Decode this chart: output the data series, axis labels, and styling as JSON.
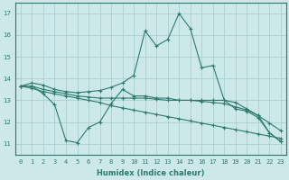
{
  "xlabel": "Humidex (Indice chaleur)",
  "xlim": [
    -0.5,
    23.5
  ],
  "ylim": [
    10.5,
    17.5
  ],
  "yticks": [
    11,
    12,
    13,
    14,
    15,
    16,
    17
  ],
  "xticks": [
    0,
    1,
    2,
    3,
    4,
    5,
    6,
    7,
    8,
    9,
    10,
    11,
    12,
    13,
    14,
    15,
    16,
    17,
    18,
    19,
    20,
    21,
    22,
    23
  ],
  "bg_color": "#cce8e8",
  "grid_color": "#aad0d0",
  "line_color": "#2d7a70",
  "line1_x": [
    0,
    1,
    2,
    3,
    4,
    5,
    6,
    7,
    8,
    9,
    10,
    11,
    12,
    13,
    14,
    15,
    16,
    17,
    18,
    19,
    20,
    21,
    22,
    23
  ],
  "line1_y": [
    13.65,
    13.8,
    13.7,
    13.5,
    13.4,
    13.35,
    13.4,
    13.45,
    13.6,
    13.8,
    14.15,
    16.2,
    15.5,
    15.8,
    17.0,
    16.3,
    14.5,
    14.6,
    13.0,
    12.6,
    12.5,
    12.2,
    11.5,
    11.1
  ],
  "line2_x": [
    0,
    1,
    2,
    3,
    4,
    5,
    6,
    7,
    8,
    9,
    10,
    11,
    12,
    13,
    14,
    15,
    16,
    17,
    18,
    19,
    20,
    21,
    22,
    23
  ],
  "line2_y": [
    13.65,
    13.65,
    13.5,
    13.4,
    13.3,
    13.2,
    13.15,
    13.1,
    13.1,
    13.1,
    13.1,
    13.1,
    13.05,
    13.0,
    13.0,
    13.0,
    12.95,
    12.9,
    12.85,
    12.7,
    12.55,
    12.3,
    11.95,
    11.6
  ],
  "line3_x": [
    0,
    1,
    2,
    3,
    4,
    5,
    6,
    7,
    8,
    9,
    10,
    11,
    12,
    13,
    14,
    15,
    16,
    17,
    18,
    19,
    20,
    21,
    22,
    23
  ],
  "line3_y": [
    13.65,
    13.55,
    13.4,
    13.3,
    13.2,
    13.1,
    13.0,
    12.9,
    12.75,
    12.65,
    12.55,
    12.45,
    12.35,
    12.25,
    12.15,
    12.05,
    11.95,
    11.85,
    11.75,
    11.65,
    11.55,
    11.45,
    11.35,
    11.25
  ],
  "line4_x": [
    0,
    1,
    2,
    3,
    4,
    5,
    6,
    7,
    8,
    9,
    10,
    11,
    12,
    13,
    14,
    15,
    16,
    17,
    18,
    19,
    20,
    21,
    22,
    23
  ],
  "line4_y": [
    13.65,
    13.65,
    13.3,
    12.8,
    11.15,
    11.05,
    11.75,
    12.0,
    12.85,
    13.5,
    13.2,
    13.2,
    13.1,
    13.1,
    13.0,
    13.0,
    13.0,
    13.0,
    13.0,
    12.9,
    12.6,
    12.3,
    11.5,
    11.1
  ]
}
